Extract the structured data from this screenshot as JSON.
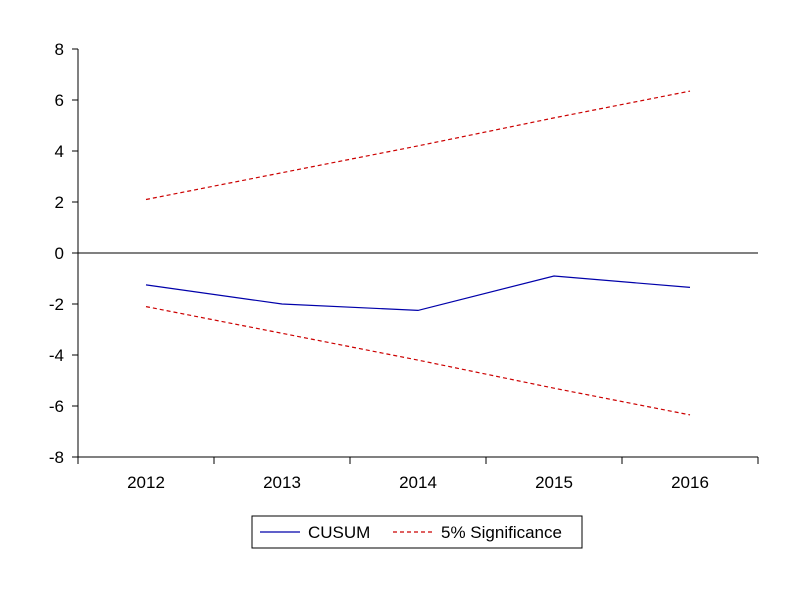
{
  "chart_data": {
    "type": "line",
    "x": [
      "2012",
      "2013",
      "2014",
      "2015",
      "2016"
    ],
    "ylim": [
      -8,
      8
    ],
    "yticks": [
      8,
      6,
      4,
      2,
      0,
      -2,
      -4,
      -6,
      -8
    ],
    "ytick_labels": [
      "8",
      "6",
      "4",
      "2",
      "0",
      "-2",
      "-4",
      "-6",
      "-8"
    ],
    "series": [
      {
        "name": "CUSUM",
        "values": [
          -1.25,
          -2.0,
          -2.25,
          -0.9,
          -1.35
        ],
        "color": "#0000aa",
        "style": "solid"
      },
      {
        "name": "5% Significance",
        "values": [
          2.1,
          3.15,
          4.2,
          5.3,
          6.35
        ],
        "color": "#cc0000",
        "style": "dashed"
      },
      {
        "name": "",
        "values": [
          -2.1,
          -3.15,
          -4.2,
          -5.3,
          -6.35
        ],
        "color": "#cc0000",
        "style": "dashed"
      }
    ],
    "zero_line": true,
    "grid": false,
    "legend_position": "bottom-center",
    "legend": [
      {
        "label": "CUSUM",
        "color": "#0000aa",
        "style": "solid"
      },
      {
        "label": "5% Significance",
        "color": "#cc0000",
        "style": "dashed"
      }
    ]
  }
}
